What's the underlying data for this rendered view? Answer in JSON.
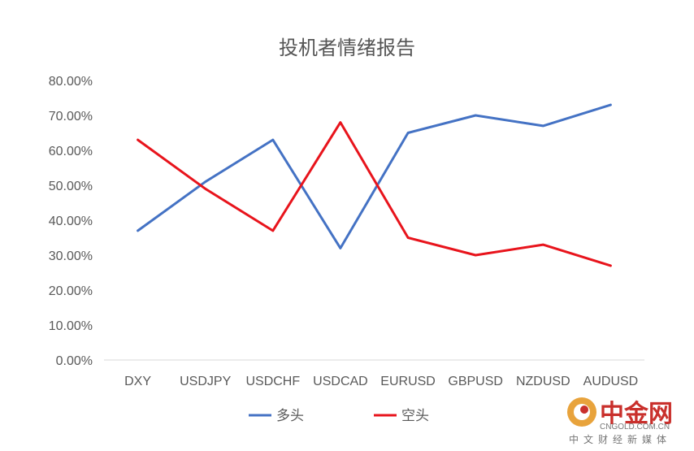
{
  "chart_data": {
    "type": "line",
    "title": "投机者情绪报告",
    "categories": [
      "DXY",
      "USDJPY",
      "USDCHF",
      "USDCAD",
      "EURUSD",
      "GBPUSD",
      "NZDUSD",
      "AUDUSD"
    ],
    "ylim": [
      0,
      0.8
    ],
    "yticks": [
      "0.00%",
      "10.00%",
      "20.00%",
      "30.00%",
      "40.00%",
      "50.00%",
      "60.00%",
      "70.00%",
      "80.00%"
    ],
    "grid": false,
    "legend_position": "bottom",
    "series": [
      {
        "name": "多头",
        "color": "#4472c4",
        "values": [
          0.37,
          0.51,
          0.63,
          0.32,
          0.65,
          0.7,
          0.67,
          0.73
        ]
      },
      {
        "name": "空头",
        "color": "#e8141c",
        "values": [
          0.63,
          0.49,
          0.37,
          0.68,
          0.35,
          0.3,
          0.33,
          0.27
        ]
      }
    ]
  },
  "watermark": {
    "brand": "中金网",
    "url": "CNGOLD.COM.CN",
    "tagline": "中文财经新媒体",
    "color": "#c9302c"
  }
}
